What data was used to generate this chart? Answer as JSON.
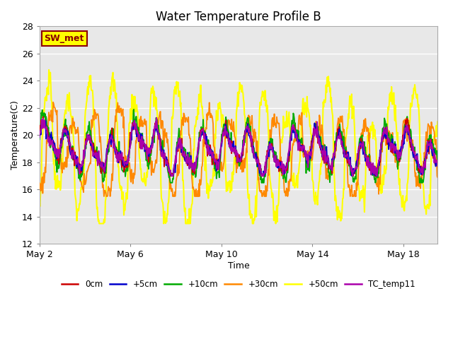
{
  "title": "Water Temperature Profile B",
  "xlabel": "Time",
  "ylabel": "Temperature(C)",
  "ylim": [
    12,
    28
  ],
  "xlim_days": [
    0,
    17.5
  ],
  "x_ticks_days": [
    0,
    4,
    8,
    12,
    16
  ],
  "x_tick_labels": [
    "May 2",
    "May 6",
    "May 10",
    "May 14",
    "May 18"
  ],
  "y_ticks": [
    12,
    14,
    16,
    18,
    20,
    22,
    24,
    26,
    28
  ],
  "bg_color": "#e8e8e8",
  "fig_color": "#ffffff",
  "annotation_text": "SW_met",
  "annotation_bg": "#ffff00",
  "annotation_border": "#8B0000",
  "annotation_text_color": "#8B0000",
  "lines": {
    "0cm": {
      "color": "#cc0000",
      "lw": 1.3,
      "zorder": 5
    },
    "+5cm": {
      "color": "#0000cc",
      "lw": 1.3,
      "zorder": 5
    },
    "+10cm": {
      "color": "#00aa00",
      "lw": 1.3,
      "zorder": 4
    },
    "+30cm": {
      "color": "#ff8800",
      "lw": 1.3,
      "zorder": 3
    },
    "+50cm": {
      "color": "#ffff00",
      "lw": 1.5,
      "zorder": 2
    },
    "TC_temp11": {
      "color": "#aa00aa",
      "lw": 1.3,
      "zorder": 6
    }
  },
  "legend_labels": [
    "0cm",
    "+5cm",
    "+10cm",
    "+30cm",
    "+50cm",
    "TC_temp11"
  ],
  "legend_colors": [
    "#cc0000",
    "#0000cc",
    "#00aa00",
    "#ff8800",
    "#ffff00",
    "#aa00aa"
  ],
  "figsize": [
    6.4,
    4.8
  ],
  "dpi": 100
}
